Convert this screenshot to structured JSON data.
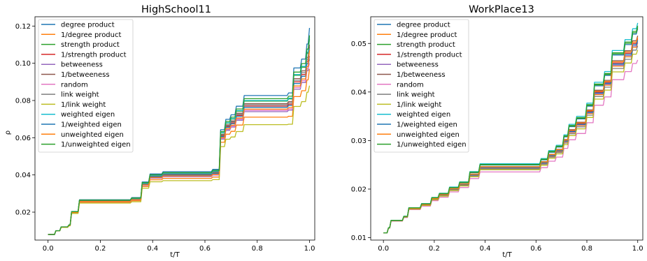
{
  "colors": [
    "#1f77b4",
    "#ff7f0e",
    "#2ca02c",
    "#d62728",
    "#9467bd",
    "#8c564b",
    "#e377c2",
    "#7f7f7f",
    "#bcbd22",
    "#17becf",
    "#1f77b4",
    "#ff7f0e",
    "#2ca02c"
  ],
  "legend": [
    "degree product",
    "1/degree product",
    "strength product",
    "1/strength product",
    "betweeness",
    "1/betweeness",
    "random",
    "link weight",
    "1/link weight",
    "weighted eigen",
    "1/weighted eigen",
    "unweighted eigen",
    "1/unweighted eigen"
  ],
  "chart_data": [
    {
      "type": "line",
      "title": "HighSchool11",
      "xlabel": "t/T",
      "ylabel": "ρ",
      "xlim": [
        -0.05,
        1.02
      ],
      "ylim": [
        0.005,
        0.125
      ],
      "xticks": [
        "0.0",
        "0.2",
        "0.4",
        "0.6",
        "0.8",
        "1.0"
      ],
      "yticks": [
        "0.02",
        "0.04",
        "0.06",
        "0.08",
        "0.10",
        "0.12"
      ],
      "legend_position": "upper-left",
      "steps": [
        [
          0.0,
          0.008
        ],
        [
          0.03,
          0.01
        ],
        [
          0.05,
          0.012
        ],
        [
          0.08,
          0.013
        ],
        [
          0.09,
          0.02
        ],
        [
          0.12,
          0.026
        ],
        [
          0.32,
          0.027
        ],
        [
          0.36,
          0.035
        ],
        [
          0.39,
          0.039
        ],
        [
          0.44,
          0.04
        ],
        [
          0.63,
          0.041
        ],
        [
          0.66,
          0.061
        ],
        [
          0.68,
          0.066
        ],
        [
          0.7,
          0.068
        ],
        [
          0.72,
          0.072
        ],
        [
          0.75,
          0.077
        ],
        [
          0.92,
          0.078
        ],
        [
          0.94,
          0.09
        ],
        [
          0.97,
          0.094
        ],
        [
          0.99,
          0.101
        ],
        [
          1.0,
          0.106
        ]
      ],
      "series": [
        {
          "name": "degree product",
          "mult": 1.085,
          "end": 0.119
        },
        {
          "name": "1/degree product",
          "mult": 0.91,
          "end": 0.097
        },
        {
          "name": "strength product",
          "mult": 1.04,
          "end": 0.113
        },
        {
          "name": "1/strength product",
          "mult": 1.0,
          "end": 0.109
        },
        {
          "name": "betweeness",
          "mult": 0.955,
          "end": 0.104
        },
        {
          "name": "1/betweeness",
          "mult": 1.02,
          "end": 0.11
        },
        {
          "name": "random",
          "mult": 0.965,
          "end": 0.1
        },
        {
          "name": "link weight",
          "mult": 1.01,
          "end": 0.108
        },
        {
          "name": "1/link weight",
          "mult": 0.85,
          "end": 0.088
        },
        {
          "name": "weighted eigen",
          "mult": 1.045,
          "end": 0.114
        },
        {
          "name": "1/weighted eigen",
          "mult": 0.99,
          "end": 0.102
        },
        {
          "name": "unweighted eigen",
          "mult": 0.975,
          "end": 0.107
        },
        {
          "name": "1/unweighted eigen",
          "mult": 1.06,
          "end": 0.115
        }
      ]
    },
    {
      "type": "line",
      "title": "WorkPlace13",
      "xlabel": "t/T",
      "ylabel": "",
      "xlim": [
        -0.05,
        1.02
      ],
      "ylim": [
        0.0095,
        0.0555
      ],
      "xticks": [
        "0.0",
        "0.2",
        "0.4",
        "0.6",
        "0.8",
        "1.0"
      ],
      "yticks": [
        "0.01",
        "0.02",
        "0.03",
        "0.04",
        "0.05"
      ],
      "legend_position": "upper-left",
      "steps": [
        [
          0.0,
          0.011
        ],
        [
          0.02,
          0.012
        ],
        [
          0.03,
          0.0135
        ],
        [
          0.08,
          0.0143
        ],
        [
          0.1,
          0.016
        ],
        [
          0.15,
          0.0168
        ],
        [
          0.19,
          0.018
        ],
        [
          0.22,
          0.0188
        ],
        [
          0.26,
          0.02
        ],
        [
          0.3,
          0.021
        ],
        [
          0.34,
          0.023
        ],
        [
          0.38,
          0.0245
        ],
        [
          0.62,
          0.0255
        ],
        [
          0.65,
          0.027
        ],
        [
          0.68,
          0.028
        ],
        [
          0.71,
          0.03
        ],
        [
          0.73,
          0.032
        ],
        [
          0.76,
          0.0335
        ],
        [
          0.8,
          0.036
        ],
        [
          0.83,
          0.04
        ],
        [
          0.87,
          0.042
        ],
        [
          0.9,
          0.046
        ],
        [
          0.95,
          0.048
        ],
        [
          0.98,
          0.05
        ],
        [
          1.0,
          0.051
        ]
      ],
      "series": [
        {
          "name": "degree product",
          "mult": 1.035
        },
        {
          "name": "1/degree product",
          "mult": 0.985
        },
        {
          "name": "strength product",
          "mult": 1.04
        },
        {
          "name": "1/strength product",
          "mult": 1.0
        },
        {
          "name": "betweeness",
          "mult": 0.99
        },
        {
          "name": "1/betweeness",
          "mult": 1.01
        },
        {
          "name": "random",
          "mult": 0.925
        },
        {
          "name": "link weight",
          "mult": 0.975
        },
        {
          "name": "1/link weight",
          "mult": 0.96
        },
        {
          "name": "weighted eigen",
          "mult": 1.055
        },
        {
          "name": "1/weighted eigen",
          "mult": 0.995
        },
        {
          "name": "unweighted eigen",
          "mult": 1.005
        },
        {
          "name": "1/unweighted eigen",
          "mult": 1.045
        }
      ]
    }
  ]
}
